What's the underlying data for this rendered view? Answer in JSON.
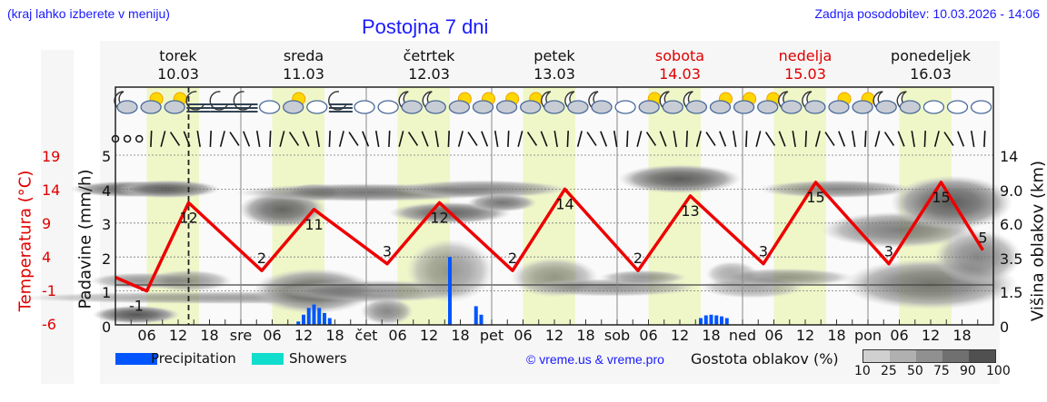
{
  "header": {
    "left_note": "(kraj lahko izberete v meniju)",
    "title": "Postojna 7 dni",
    "updated": "Zadnja posodobitev: 10.03.2026 - 14:06"
  },
  "days": [
    {
      "name": "torek",
      "date": "10.03",
      "weekend": false
    },
    {
      "name": "sreda",
      "date": "11.03",
      "weekend": false
    },
    {
      "name": "četrtek",
      "date": "12.03",
      "weekend": false
    },
    {
      "name": "petek",
      "date": "13.03",
      "weekend": false
    },
    {
      "name": "sobota",
      "date": "14.03",
      "weekend": true
    },
    {
      "name": "nedelja",
      "date": "15.03",
      "weekend": true
    },
    {
      "name": "ponedeljek",
      "date": "16.03",
      "weekend": false
    }
  ],
  "axes": {
    "temp_label": "Temperatura (°C)",
    "precip_label": "Padavine (mm/h)",
    "cloud_label": "Višina oblakov (km)",
    "temp_ticks": [
      "19",
      "14",
      "9",
      "4",
      "-1",
      "-6"
    ],
    "precip_ticks": [
      "5",
      "4",
      "3",
      "2",
      "1",
      "0"
    ],
    "cloud_ticks": [
      "14",
      "9.0",
      "6.0",
      "3.5",
      "1.5",
      "0"
    ],
    "x_ticks": [
      "06",
      "12",
      "18",
      "sre",
      "06",
      "12",
      "18",
      "čet",
      "06",
      "12",
      "18",
      "pet",
      "06",
      "12",
      "18",
      "sob",
      "06",
      "12",
      "18",
      "ned",
      "06",
      "12",
      "18",
      "pon",
      "06",
      "12",
      "18"
    ]
  },
  "legend": {
    "precipitation": "Precipitation",
    "showers": "Showers",
    "copyright": "© vreme.us & vreme.pro",
    "cloud_density": "Gostota oblakov (%)",
    "cloud_scale": [
      "10",
      "25",
      "50",
      "75",
      "90",
      "100"
    ]
  },
  "colors": {
    "temperature": "#ee0000",
    "precipitation": "#0055ff",
    "showers": "#11ddcc",
    "daylight": "#eff7c8",
    "title": "#1a1aff",
    "weekend": "#e00000"
  },
  "chart_data": {
    "type": "line",
    "title": "Postojna 7 dni",
    "xlabel": "",
    "ylabel": "Temperatura (°C) / Padavine (mm/h)",
    "x_range_hours": [
      0,
      168
    ],
    "series": [
      {
        "name": "Temperatura (°C)",
        "points_hours": [
          0,
          6,
          14,
          28,
          38,
          52,
          62,
          76,
          86,
          100,
          110,
          124,
          134,
          148,
          158,
          166
        ],
        "values": [
          1,
          -1,
          12,
          2,
          11,
          3,
          12,
          2,
          14,
          2,
          13,
          3,
          15,
          3,
          15,
          5
        ],
        "labels": [
          {
            "hour": 4,
            "value": -1
          },
          {
            "hour": 14,
            "value": 12
          },
          {
            "hour": 28,
            "value": 2
          },
          {
            "hour": 38,
            "value": 11
          },
          {
            "hour": 52,
            "value": 3
          },
          {
            "hour": 62,
            "value": 12
          },
          {
            "hour": 76,
            "value": 2
          },
          {
            "hour": 86,
            "value": 14
          },
          {
            "hour": 100,
            "value": 2
          },
          {
            "hour": 110,
            "value": 13
          },
          {
            "hour": 124,
            "value": 3
          },
          {
            "hour": 134,
            "value": 15
          },
          {
            "hour": 148,
            "value": 3
          },
          {
            "hour": 158,
            "value": 15
          },
          {
            "hour": 166,
            "value": 5
          }
        ]
      },
      {
        "name": "Precipitation (mm/h)",
        "bars": [
          {
            "hour": 35,
            "value": 0.1
          },
          {
            "hour": 36,
            "value": 0.3
          },
          {
            "hour": 37,
            "value": 0.5
          },
          {
            "hour": 38,
            "value": 0.6
          },
          {
            "hour": 39,
            "value": 0.5
          },
          {
            "hour": 40,
            "value": 0.35
          },
          {
            "hour": 41,
            "value": 0.2
          },
          {
            "hour": 64,
            "value": 2.0
          },
          {
            "hour": 69,
            "value": 0.55
          },
          {
            "hour": 70,
            "value": 0.3
          },
          {
            "hour": 112,
            "value": 0.2
          },
          {
            "hour": 113,
            "value": 0.28
          },
          {
            "hour": 114,
            "value": 0.3
          },
          {
            "hour": 115,
            "value": 0.28
          },
          {
            "hour": 116,
            "value": 0.25
          },
          {
            "hour": 117,
            "value": 0.2
          }
        ]
      }
    ],
    "now_marker_hour": 14,
    "precip_ylim": [
      0,
      5
    ],
    "temp_ticks": [
      19,
      14,
      9,
      4,
      -1,
      -6
    ],
    "cloud_height_ticks_km": [
      14,
      9.0,
      6.0,
      3.5,
      1.5,
      0
    ],
    "legend": [
      "Precipitation",
      "Showers",
      "Gostota oblakov (%)"
    ],
    "grid": true
  }
}
